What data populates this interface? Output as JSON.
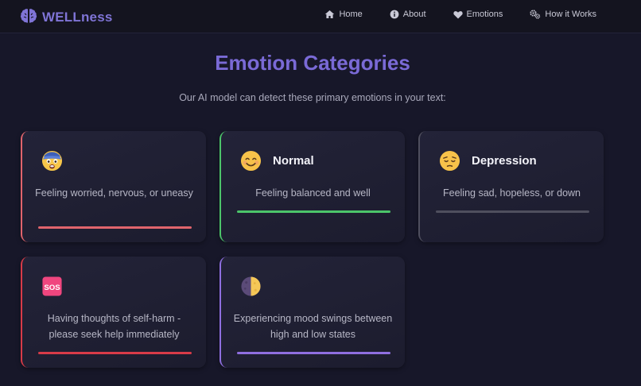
{
  "brand": {
    "name": "WELLness",
    "icon": "brain-icon",
    "color": "#7f74d6"
  },
  "nav": [
    {
      "label": "Home",
      "icon": "home-icon"
    },
    {
      "label": "About",
      "icon": "info-icon"
    },
    {
      "label": "Emotions",
      "icon": "heart-icon"
    },
    {
      "label": "How it Works",
      "icon": "gears-icon"
    }
  ],
  "section": {
    "title": "Emotion Categories",
    "subtitle": "Our AI model can detect these primary emotions in your text:"
  },
  "cards": [
    {
      "name": "",
      "emoji": "anxious-face-icon",
      "description": "Feeling worried, nervous, or uneasy",
      "accent": "#e0646c"
    },
    {
      "name": "Normal",
      "emoji": "smiling-face-icon",
      "description": "Feeling balanced and well",
      "accent": "#4cc56a"
    },
    {
      "name": "Depression",
      "emoji": "pensive-face-icon",
      "description": "Feeling sad, hopeless, or down",
      "accent": "#4f4f5e"
    },
    {
      "name": "",
      "emoji": "sos-icon",
      "description": "Having thoughts of self-harm - please seek help immediately",
      "accent": "#d83b48"
    },
    {
      "name": "",
      "emoji": "half-moon-icon",
      "description": "Experiencing mood swings between high and low states",
      "accent": "#8f6fe0"
    }
  ]
}
